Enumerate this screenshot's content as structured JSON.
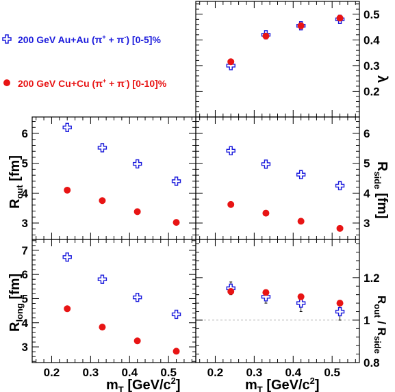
{
  "chart_data": [
    {
      "type": "scatter",
      "panel": "lambda",
      "x": [
        0.24,
        0.33,
        0.42,
        0.52
      ],
      "series": [
        {
          "name": "200 GeV Au+Au (π⁺ + π⁻) [0-5]%",
          "values": [
            0.3,
            0.42,
            0.455,
            0.48
          ],
          "errors": [
            0.012,
            0.01,
            0.01,
            0.012
          ]
        },
        {
          "name": "200 GeV Cu+Cu (π⁺ + π⁻) [0-10]%",
          "values": [
            0.315,
            0.415,
            0.455,
            0.485
          ],
          "errors": [
            0.006,
            0.006,
            0.006,
            0.006
          ]
        }
      ],
      "xlim": [
        0.15,
        0.57
      ],
      "ylim": [
        0.1,
        0.55
      ],
      "yticks": [
        "0.2",
        "0.3",
        "0.4",
        "0.5"
      ],
      "ylabel": "λ"
    },
    {
      "type": "scatter",
      "panel": "Rout",
      "x": [
        0.24,
        0.33,
        0.42,
        0.52
      ],
      "series": [
        {
          "name": "200 GeV Au+Au (π⁺ + π⁻) [0-5]%",
          "values": [
            6.2,
            5.52,
            4.98,
            4.4
          ],
          "errors": [
            0.12,
            0.14,
            0.13,
            0.12
          ]
        },
        {
          "name": "200 GeV Cu+Cu (π⁺ + π⁻) [0-10]%",
          "values": [
            4.1,
            3.75,
            3.38,
            3.02
          ],
          "errors": [
            0.03,
            0.03,
            0.03,
            0.03
          ]
        }
      ],
      "xlim": [
        0.15,
        0.57
      ],
      "ylim": [
        2.45,
        6.55
      ],
      "yticks": [
        "3",
        "4",
        "5",
        "6"
      ],
      "ylabel": "R",
      "ylabel_sub": "out",
      "yunit": "[fm]"
    },
    {
      "type": "scatter",
      "panel": "Rside",
      "x": [
        0.24,
        0.33,
        0.42,
        0.52
      ],
      "series": [
        {
          "name": "200 GeV Au+Au (π⁺ + π⁻) [0-5]%",
          "values": [
            5.42,
            4.97,
            4.62,
            4.25
          ],
          "errors": [
            0.07,
            0.07,
            0.08,
            0.08
          ]
        },
        {
          "name": "200 GeV Cu+Cu (π⁺ + π⁻) [0-10]%",
          "values": [
            3.62,
            3.33,
            3.06,
            2.82
          ],
          "errors": [
            0.03,
            0.03,
            0.03,
            0.03
          ]
        }
      ],
      "xlim": [
        0.15,
        0.57
      ],
      "ylim": [
        2.45,
        6.55
      ],
      "yticks": [
        "3",
        "4",
        "5",
        "6"
      ],
      "ylabel": "R",
      "ylabel_sub": "side",
      "yunit": "[fm]"
    },
    {
      "type": "scatter",
      "panel": "Rlong",
      "x": [
        0.24,
        0.33,
        0.42,
        0.52
      ],
      "series": [
        {
          "name": "200 GeV Au+Au (π⁺ + π⁻) [0-5]%",
          "values": [
            6.72,
            5.8,
            5.05,
            4.35
          ],
          "errors": [
            0.08,
            0.08,
            0.08,
            0.08
          ]
        },
        {
          "name": "200 GeV Cu+Cu (π⁺ + π⁻) [0-10]%",
          "values": [
            4.58,
            3.82,
            3.25,
            2.82
          ],
          "errors": [
            0.03,
            0.03,
            0.03,
            0.03
          ]
        }
      ],
      "xlim": [
        0.15,
        0.57
      ],
      "ylim": [
        2.35,
        7.45
      ],
      "xticks": [
        "0.2",
        "0.3",
        "0.4",
        "0.5"
      ],
      "yticks": [
        "3",
        "4",
        "5",
        "6",
        "7"
      ],
      "ylabel": "R",
      "ylabel_sub": "long",
      "yunit": "[fm]",
      "xlabel": "m",
      "xlabel_sub": "T",
      "xunit": "[GeV/c",
      "xunit_sup": "2",
      "xunit_end": "]"
    },
    {
      "type": "scatter",
      "panel": "ratio",
      "x": [
        0.24,
        0.33,
        0.42,
        0.52
      ],
      "series": [
        {
          "name": "200 GeV Au+Au (π⁺ + π⁻) [0-5]%",
          "values": [
            1.15,
            1.11,
            1.08,
            1.04
          ],
          "errors": [
            0.03,
            0.03,
            0.04,
            0.04
          ]
        },
        {
          "name": "200 GeV Cu+Cu (π⁺ + π⁻) [0-10]%",
          "values": [
            1.135,
            1.13,
            1.11,
            1.08
          ],
          "errors": [
            0.01,
            0.01,
            0.01,
            0.01
          ]
        }
      ],
      "xlim": [
        0.15,
        0.57
      ],
      "ylim": [
        0.8,
        1.38
      ],
      "reference_line": 1.0,
      "xticks": [
        "0.2",
        "0.3",
        "0.4",
        "0.5"
      ],
      "yticks": [
        "0.8",
        "1",
        "1.2"
      ],
      "ylabel_num": "R",
      "ylabel_num_sub": "out",
      "ylabel_div": " / ",
      "ylabel_den": "R",
      "ylabel_den_sub": "side",
      "xlabel": "m",
      "xlabel_sub": "T",
      "xunit": "[GeV/c",
      "xunit_sup": "2",
      "xunit_end": "]"
    }
  ],
  "legend": {
    "entries": [
      {
        "label": "200 GeV Au+Au (π",
        "sup1": "+",
        "mid": " + π",
        "sup2": "-",
        "tail": ")  [0-5]%",
        "color": "#1a1adc",
        "marker": "open-cross"
      },
      {
        "label": "200 GeV Cu+Cu (π",
        "sup1": "+",
        "mid": " + π",
        "sup2": "-",
        "tail": ") [0-10]%",
        "color": "#e81414",
        "marker": "filled-circle"
      }
    ]
  },
  "colors": {
    "auau": "#1a1adc",
    "cucu": "#e81414",
    "axis": "#000000",
    "refline": "#bbbbbb"
  }
}
